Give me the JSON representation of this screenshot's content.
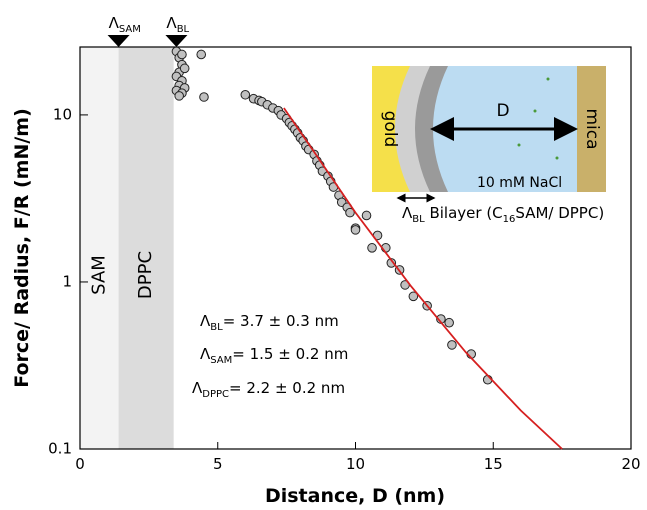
{
  "chart_data": {
    "type": "scatter",
    "xlabel": "Distance, D (nm)",
    "ylabel": "Force/ Radius, F/R (mN/m)",
    "xlim": [
      0,
      20
    ],
    "xticks": [
      0,
      5,
      10,
      15,
      20
    ],
    "ylim": [
      0.1,
      25.5
    ],
    "yticks": [
      0.1,
      1,
      10
    ],
    "ylog": true,
    "regions": [
      {
        "name": "SAM",
        "range": [
          0,
          1.4
        ],
        "color": "#f3f3f3"
      },
      {
        "name": "DPPC",
        "range": [
          1.4,
          3.4
        ],
        "color": "#dcdcdc"
      }
    ],
    "markers": [
      {
        "symbol": "Λ",
        "sub": "SAM",
        "x": 1.4
      },
      {
        "symbol": "Λ",
        "sub": "BL",
        "x": 3.5
      }
    ],
    "series": [
      {
        "type": "scatter",
        "color": "#c0c0c0",
        "x": [
          3.5,
          3.6,
          3.7,
          3.6,
          3.5,
          3.7,
          3.6,
          3.8,
          3.5,
          3.7,
          3.6,
          3.8,
          3.7,
          4.4,
          4.5,
          6.0,
          6.3,
          6.5,
          6.6,
          6.8,
          7.0,
          7.2,
          7.3,
          7.5,
          7.6,
          7.7,
          7.8,
          7.9,
          8.0,
          8.1,
          8.2,
          8.3,
          8.5,
          8.6,
          8.7,
          8.8,
          9.0,
          9.1,
          9.2,
          9.4,
          9.5,
          9.7,
          9.8,
          10.0,
          10.4,
          10.0,
          10.8,
          10.6,
          11.1,
          11.3,
          11.6,
          11.8,
          12.1,
          12.6,
          13.1,
          13.4,
          13.5,
          14.2,
          14.8
        ],
        "values": [
          24,
          22,
          20,
          18,
          17,
          16,
          15,
          14.5,
          14,
          13.5,
          13,
          19,
          23,
          23,
          12.8,
          13.2,
          12.5,
          12.2,
          12,
          11.5,
          11,
          10.6,
          10,
          9.5,
          9,
          8.6,
          8.2,
          7.8,
          7.3,
          7,
          6.5,
          6.2,
          5.8,
          5.3,
          5,
          4.6,
          4.3,
          4,
          3.7,
          3.3,
          3.0,
          2.8,
          2.6,
          2.1,
          2.5,
          2.05,
          1.9,
          1.6,
          1.6,
          1.3,
          1.18,
          0.96,
          0.82,
          0.72,
          0.6,
          0.57,
          0.42,
          0.37,
          0.26
        ]
      },
      {
        "type": "line",
        "color": "#d62020",
        "x": [
          7.4,
          8.5,
          10,
          12,
          14,
          16,
          17.5
        ],
        "values": [
          11,
          6,
          2.6,
          0.95,
          0.38,
          0.17,
          0.1
        ]
      }
    ],
    "annotations": [
      {
        "symbol": "Λ",
        "sub": "BL",
        "text": "= 3.7 ± 0.3 nm"
      },
      {
        "symbol": "Λ",
        "sub": "SAM",
        "text": "= 1.5 ± 0.2 nm"
      },
      {
        "symbol": "Λ",
        "sub": "DPPC",
        "text": "= 2.2 ± 0.2 nm"
      }
    ],
    "inset": {
      "gold": "gold",
      "mica": "mica",
      "gap": "D",
      "salt": "10 mM NaCl",
      "caption": {
        "symbol": "Λ",
        "sub": "BL",
        "text1": " Bilayer (C",
        "sub2": "16",
        "text2": "SAM/ DPPC)"
      }
    }
  }
}
